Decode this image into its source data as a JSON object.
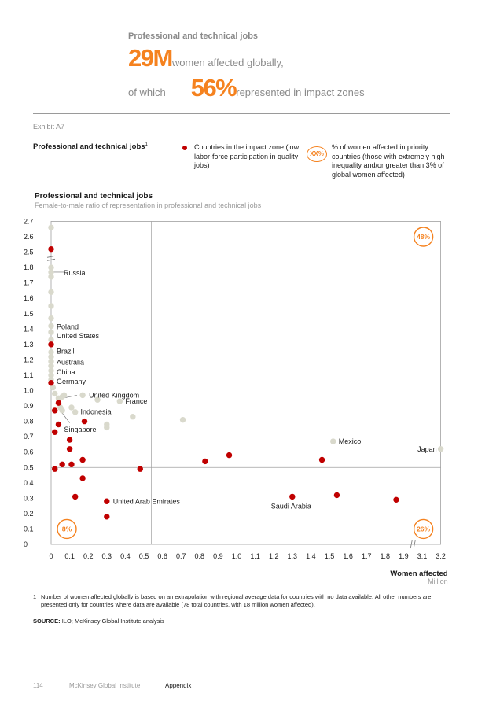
{
  "header": {
    "title": "Professional and technical jobs",
    "big_number_1": "29M",
    "line_1_text": "women affected globally,",
    "line_2_prefix": "of which",
    "big_number_2": "56%",
    "line_2_text": "represented in impact zones"
  },
  "exhibit": {
    "label": "Exhibit A7",
    "title": "Professional and technical jobs",
    "title_note": "1"
  },
  "legend": {
    "impact_zone_text": "Countries in the impact zone (low labor-force participation in quality jobs)",
    "badge_text": "XX%",
    "badge_desc": "% of women affected in priority countries (those with extremely high inequality and/or greater than 3% of global women affected)"
  },
  "colors": {
    "accent": "#f5821f",
    "impact_zone": "#c00000",
    "other": "#d9d9cc"
  },
  "chart_data": {
    "type": "scatter",
    "title": "Professional and technical jobs",
    "subtitle": "Female-to-male ratio of representation in professional and technical jobs",
    "xlabel": "Women affected",
    "xunit": "Million",
    "x_ticks": [
      "0",
      "0.1",
      "0.2",
      "0.3",
      "0.4",
      "0.5",
      "0.6",
      "0.7",
      "0.8",
      "0.9",
      "1.0",
      "1.1",
      "1.2",
      "1.3",
      "1.4",
      "1.5",
      "1.6",
      "1.7",
      "1.8",
      "1.9",
      "3.1",
      "3.2"
    ],
    "y_ticks": [
      "0",
      "0.1",
      "0.2",
      "0.3",
      "0.4",
      "0.5",
      "0.6",
      "0.7",
      "0.8",
      "0.9",
      "1.0",
      "1.1",
      "1.2",
      "1.3",
      "1.4",
      "1.5",
      "1.6",
      "1.7",
      "1.8",
      "2.5",
      "2.6",
      "2.7"
    ],
    "axis_break_x": "between 1.9 and 3.1",
    "axis_break_y": "between 1.8 and 2.5",
    "reference_lines": {
      "x": 0.54,
      "y": 0.5
    },
    "quadrant_labels": [
      {
        "text": "48%",
        "position": "top-right"
      },
      {
        "text": "8%",
        "position": "bottom-left"
      },
      {
        "text": "26%",
        "position": "bottom-right"
      }
    ],
    "series": [
      {
        "name": "Countries in the impact zone",
        "color": "#c00000",
        "points": [
          {
            "x": 0.0,
            "y": 2.52
          },
          {
            "x": 0.0,
            "y": 1.3
          },
          {
            "x": 0.0,
            "y": 1.05
          },
          {
            "x": 0.04,
            "y": 0.92
          },
          {
            "x": 0.02,
            "y": 0.87
          },
          {
            "x": 0.04,
            "y": 0.78
          },
          {
            "x": 0.02,
            "y": 0.73
          },
          {
            "x": 0.18,
            "y": 0.8
          },
          {
            "x": 0.1,
            "y": 0.68
          },
          {
            "x": 0.1,
            "y": 0.62
          },
          {
            "x": 0.17,
            "y": 0.55
          },
          {
            "x": 0.06,
            "y": 0.52
          },
          {
            "x": 0.11,
            "y": 0.52
          },
          {
            "x": 0.02,
            "y": 0.49
          },
          {
            "x": 0.17,
            "y": 0.43
          },
          {
            "x": 0.13,
            "y": 0.31
          },
          {
            "x": 0.3,
            "y": 0.28
          },
          {
            "x": 0.3,
            "y": 0.18
          },
          {
            "x": 0.48,
            "y": 0.49
          },
          {
            "x": 0.83,
            "y": 0.54
          },
          {
            "x": 0.96,
            "y": 0.58
          },
          {
            "x": 1.3,
            "y": 0.31
          },
          {
            "x": 1.46,
            "y": 0.55
          },
          {
            "x": 1.54,
            "y": 0.32
          },
          {
            "x": 1.86,
            "y": 0.29
          }
        ]
      },
      {
        "name": "Other countries",
        "color": "#d9d9cc",
        "points": [
          {
            "x": 0.0,
            "y": 2.66
          },
          {
            "x": 0.0,
            "y": 1.8
          },
          {
            "x": 0.0,
            "y": 1.77
          },
          {
            "x": 0.0,
            "y": 1.74
          },
          {
            "x": 0.0,
            "y": 1.64
          },
          {
            "x": 0.0,
            "y": 1.55
          },
          {
            "x": 0.0,
            "y": 1.47
          },
          {
            "x": 0.0,
            "y": 1.42
          },
          {
            "x": 0.0,
            "y": 1.38
          },
          {
            "x": 0.0,
            "y": 1.33
          },
          {
            "x": 0.0,
            "y": 1.25
          },
          {
            "x": 0.0,
            "y": 1.22
          },
          {
            "x": 0.0,
            "y": 1.19
          },
          {
            "x": 0.0,
            "y": 1.16
          },
          {
            "x": 0.0,
            "y": 1.13
          },
          {
            "x": 0.0,
            "y": 1.1
          },
          {
            "x": 0.0,
            "y": 1.07
          },
          {
            "x": 0.01,
            "y": 1.02
          },
          {
            "x": 0.02,
            "y": 0.98
          },
          {
            "x": 0.04,
            "y": 0.95
          },
          {
            "x": 0.06,
            "y": 0.96
          },
          {
            "x": 0.07,
            "y": 0.97
          },
          {
            "x": 0.05,
            "y": 0.89
          },
          {
            "x": 0.06,
            "y": 0.87
          },
          {
            "x": 0.11,
            "y": 0.89
          },
          {
            "x": 0.13,
            "y": 0.86
          },
          {
            "x": 0.17,
            "y": 0.97
          },
          {
            "x": 0.25,
            "y": 0.94
          },
          {
            "x": 0.37,
            "y": 0.93
          },
          {
            "x": 0.3,
            "y": 0.78
          },
          {
            "x": 0.3,
            "y": 0.76
          },
          {
            "x": 0.44,
            "y": 0.83
          },
          {
            "x": 0.71,
            "y": 0.81
          },
          {
            "x": 1.52,
            "y": 0.67
          },
          {
            "x": 3.2,
            "y": 0.62
          }
        ]
      }
    ],
    "annotations": [
      {
        "text": "Russia",
        "x": 0.0,
        "y": 1.77
      },
      {
        "text": "Poland",
        "x": 0.0,
        "y": 1.42
      },
      {
        "text": "United States",
        "x": 0.0,
        "y": 1.33
      },
      {
        "text": "Brazil",
        "x": 0.0,
        "y": 1.25
      },
      {
        "text": "Australia",
        "x": 0.0,
        "y": 1.19
      },
      {
        "text": "China",
        "x": 0.0,
        "y": 1.13
      },
      {
        "text": "Germany",
        "x": 0.0,
        "y": 1.07
      },
      {
        "text": "United Kingdom",
        "x": 0.17,
        "y": 0.97
      },
      {
        "text": "France",
        "x": 0.37,
        "y": 0.93
      },
      {
        "text": "Indonesia",
        "x": 0.18,
        "y": 0.8
      },
      {
        "text": "Singapore",
        "x": 0.04,
        "y": 0.92
      },
      {
        "text": "Mexico",
        "x": 1.52,
        "y": 0.67
      },
      {
        "text": "Japan",
        "x": 3.2,
        "y": 0.62
      },
      {
        "text": "United Arab Emirates",
        "x": 0.3,
        "y": 0.28
      },
      {
        "text": "Saudi Arabia",
        "x": 1.3,
        "y": 0.31
      }
    ]
  },
  "footnote": {
    "number": "1",
    "text": "Number of women affected globally is based on an extrapolation with regional average data for countries with no data available. All other numbers are presented only for countries where data are available (78 total countries, with 18 million women affected)."
  },
  "source": {
    "label": "SOURCE:",
    "text": "ILO; McKinsey Global Institute analysis"
  },
  "footer": {
    "page": "114",
    "org": "McKinsey Global Institute",
    "section": "Appendix"
  }
}
